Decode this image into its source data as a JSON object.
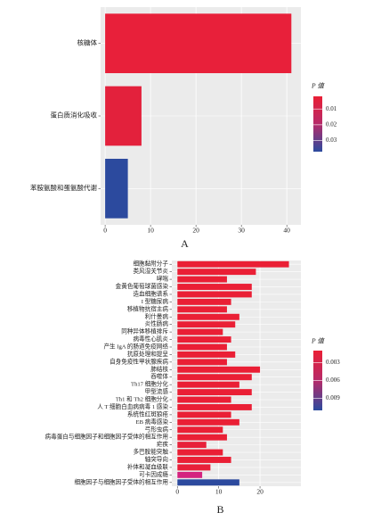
{
  "chart_data": [
    {
      "type": "barh",
      "label": "A",
      "legend_title": "P 值",
      "categories": [
        "核糖体",
        "蛋白质消化吸收",
        "苯胺氨酸和蛋氨酸代谢"
      ],
      "values": [
        41,
        8,
        5
      ],
      "colors": [
        "#e8203a",
        "#e3213c",
        "#2c4a9e"
      ],
      "xlim": [
        -1,
        43.1
      ],
      "xticks": [
        0,
        10,
        20,
        30,
        40
      ],
      "grid": true,
      "colorscale": [
        "#ea1f35",
        "#b62b6a",
        "#2c4a9e"
      ],
      "clim": [
        0.002,
        0.037
      ],
      "cticks": [
        0.01,
        0.02,
        0.03
      ]
    },
    {
      "type": "barh",
      "label": "B",
      "legend_title": "P 值",
      "categories": [
        "细胞黏附分子",
        "类风湿关节炎",
        "哮喘",
        "金黄色葡萄球菌感染",
        "造血细胞谱系",
        "I 型糖尿病",
        "移植物抗宿主病",
        "利什曼病",
        "炎性肠病",
        "同种异体移植排斥",
        "病毒性心肌炎",
        "产生 IgA 的肠道免疫网络",
        "抗原处理和提呈",
        "自身免疫性甲状腺疾病",
        "肺结核",
        "吞噬体",
        "Th17 细胞分化",
        "甲型流感",
        "Th1 和 Th2 细胞分化",
        "人 T 细胞白血病病毒 1 感染",
        "系统性红斑狼疮",
        "EB 病毒感染",
        "弓形虫病",
        "病毒蛋白与细胞因子和细胞因子受体的相互作用",
        "疟疾",
        "多巴胺能突触",
        "轴突导向",
        "补体和凝血级联",
        "可卡因成瘾",
        "细胞因子与细胞因子受体的相互作用"
      ],
      "values": [
        27,
        19,
        12,
        18,
        18,
        13,
        12,
        15,
        14,
        11,
        13,
        12,
        14,
        12,
        20,
        18,
        15,
        18,
        13,
        18,
        13,
        15,
        11,
        12,
        7,
        11,
        13,
        8,
        6,
        15
      ],
      "colors": [
        "#ea1f35",
        "#ea1f35",
        "#ea1f35",
        "#ea1f35",
        "#ea1f35",
        "#ea1f35",
        "#ea1f35",
        "#ea1f35",
        "#ea1f35",
        "#ea1f35",
        "#ea1f35",
        "#ea1f35",
        "#ea1f35",
        "#ea1f35",
        "#ea1f35",
        "#ea1f35",
        "#ea1f35",
        "#ea1f35",
        "#ea1f35",
        "#ea1f35",
        "#ea1f35",
        "#ea1f35",
        "#ea1f35",
        "#ea1f35",
        "#e7213a",
        "#ea1f35",
        "#ea1f35",
        "#e8203a",
        "#d4237f",
        "#2c4a9e"
      ],
      "xlim": [
        -1.35,
        29.9
      ],
      "xticks": [
        0,
        10,
        20
      ],
      "grid": true,
      "colorscale": [
        "#ea1f35",
        "#b62b6a",
        "#2c4a9e"
      ],
      "clim": [
        0.001,
        0.011
      ],
      "cticks": [
        0.003,
        0.006,
        0.009
      ]
    }
  ]
}
